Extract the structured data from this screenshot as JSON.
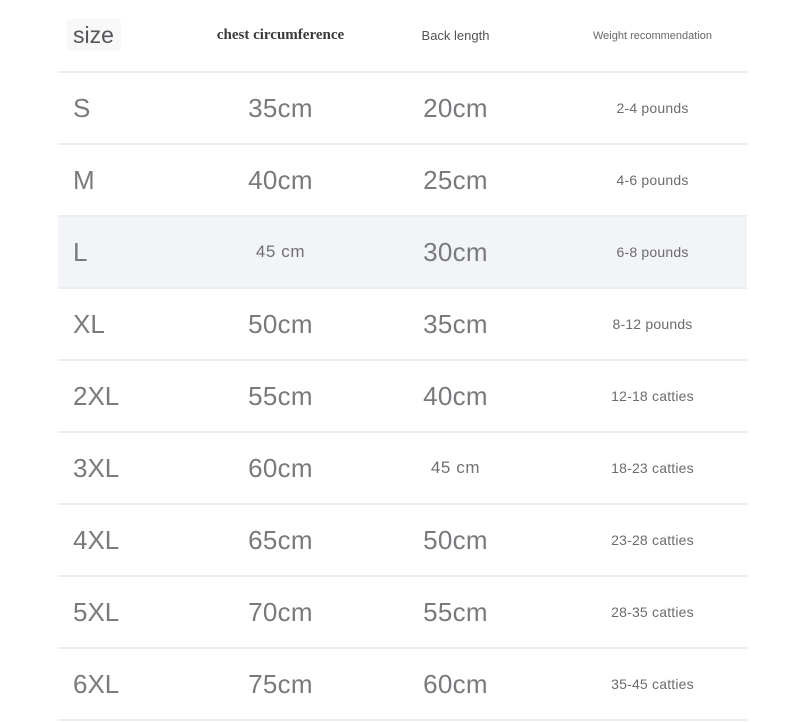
{
  "table": {
    "columns": [
      {
        "id": "size",
        "label": "size"
      },
      {
        "id": "chest",
        "label": "chest circumference"
      },
      {
        "id": "back",
        "label": "Back length"
      },
      {
        "id": "weight",
        "label": "Weight recommendation"
      }
    ],
    "rows": [
      {
        "size": "S",
        "chest": "35cm",
        "back": "20cm",
        "weight": "2-4 pounds",
        "highlighted": false,
        "chest_small": false,
        "back_small": false
      },
      {
        "size": "M",
        "chest": "40cm",
        "back": "25cm",
        "weight": "4-6 pounds",
        "highlighted": false,
        "chest_small": false,
        "back_small": false
      },
      {
        "size": "L",
        "chest": "45 cm",
        "back": "30cm",
        "weight": "6-8 pounds",
        "highlighted": true,
        "chest_small": true,
        "back_small": false
      },
      {
        "size": "XL",
        "chest": "50cm",
        "back": "35cm",
        "weight": "8-12 pounds",
        "highlighted": false,
        "chest_small": false,
        "back_small": false
      },
      {
        "size": "2XL",
        "chest": "55cm",
        "back": "40cm",
        "weight": "12-18 catties",
        "highlighted": false,
        "chest_small": false,
        "back_small": false
      },
      {
        "size": "3XL",
        "chest": "60cm",
        "back": "45 cm",
        "weight": "18-23 catties",
        "highlighted": false,
        "chest_small": false,
        "back_small": true
      },
      {
        "size": "4XL",
        "chest": "65cm",
        "back": "50cm",
        "weight": "23-28 catties",
        "highlighted": false,
        "chest_small": false,
        "back_small": false
      },
      {
        "size": "5XL",
        "chest": "70cm",
        "back": "55cm",
        "weight": "28-35 catties",
        "highlighted": false,
        "chest_small": false,
        "back_small": false
      },
      {
        "size": "6XL",
        "chest": "75cm",
        "back": "60cm",
        "weight": "35-45 catties",
        "highlighted": false,
        "chest_small": false,
        "back_small": false
      }
    ]
  },
  "colors": {
    "page_background": "#ffffff",
    "divider": "#ecedf3",
    "row_highlight": "#f3f4f8",
    "value_text": "#797a7e",
    "size_header_text": "#55565a",
    "serif_header_text": "#3b3b3d",
    "weight_text": "#6b6c70"
  },
  "chart_data": {
    "type": "table",
    "title": "Pet clothing size chart",
    "columns": [
      "size",
      "chest circumference",
      "Back length",
      "Weight recommendation"
    ],
    "rows": [
      [
        "S",
        "35cm",
        "20cm",
        "2-4 pounds"
      ],
      [
        "M",
        "40cm",
        "25cm",
        "4-6 pounds"
      ],
      [
        "L",
        "45 cm",
        "30cm",
        "6-8 pounds"
      ],
      [
        "XL",
        "50cm",
        "35cm",
        "8-12 pounds"
      ],
      [
        "2XL",
        "55cm",
        "40cm",
        "12-18 catties"
      ],
      [
        "3XL",
        "60cm",
        "45 cm",
        "18-23 catties"
      ],
      [
        "4XL",
        "65cm",
        "50cm",
        "23-28 catties"
      ],
      [
        "5XL",
        "70cm",
        "55cm",
        "28-35 catties"
      ],
      [
        "6XL",
        "75cm",
        "60cm",
        "35-45 catties"
      ]
    ],
    "layout_hints": {
      "highlighted_row": "L",
      "small_text_cells": [
        "L/chest circumference",
        "3XL/Back length"
      ],
      "grid": "horizontal dividers only"
    }
  }
}
